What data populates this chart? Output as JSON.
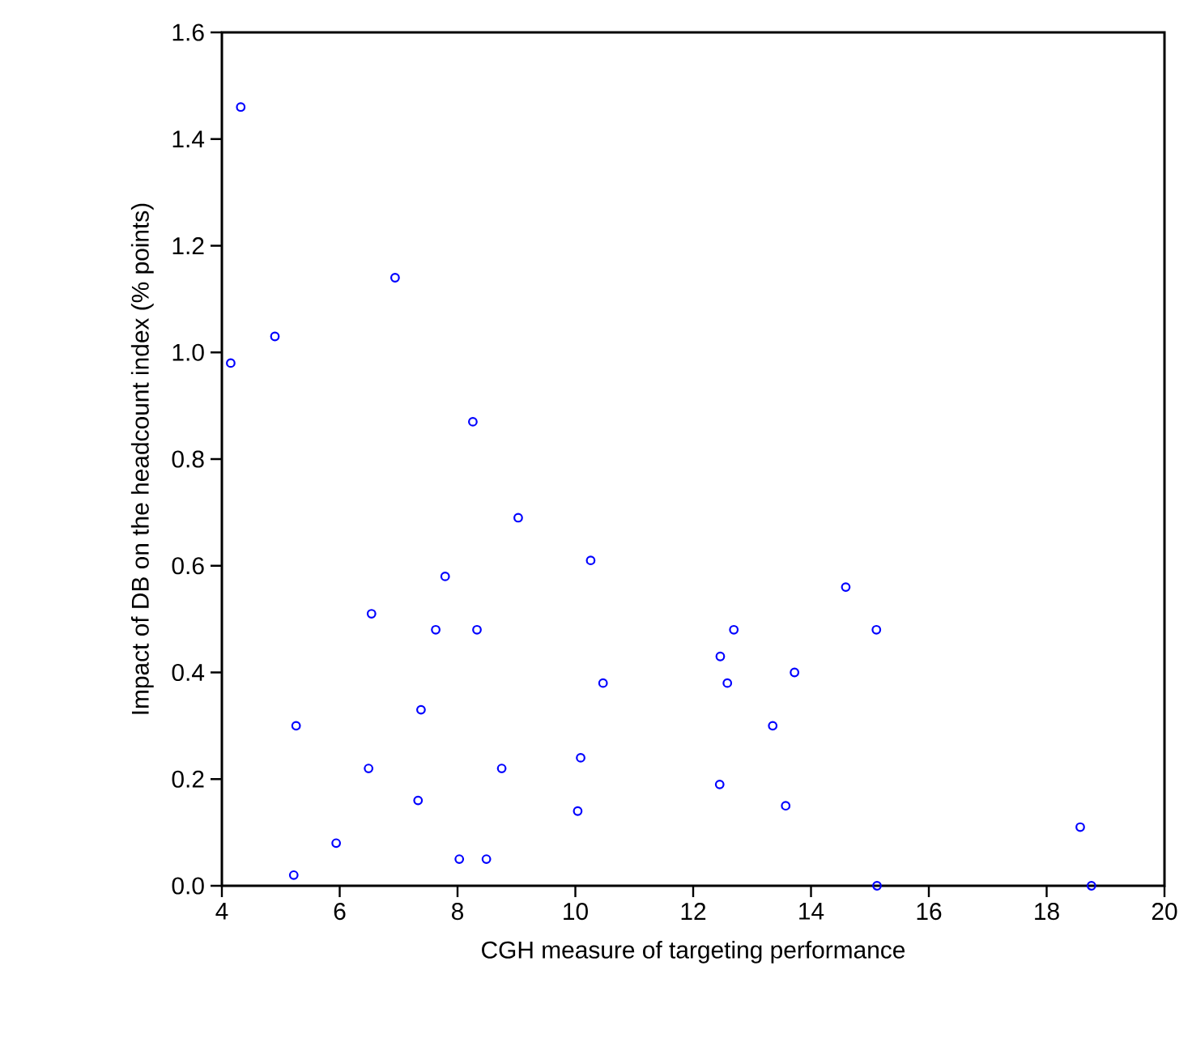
{
  "chart_data": {
    "type": "scatter",
    "xlabel": "CGH measure of targeting performance",
    "ylabel": "Impact of DB on the headcount index (% points)",
    "xlim": [
      4,
      20
    ],
    "ylim": [
      0,
      1.6
    ],
    "xticks": [
      4,
      6,
      8,
      10,
      12,
      14,
      16,
      18,
      20
    ],
    "yticks": [
      {
        "value": 0,
        "label": "0.0"
      },
      0.2,
      0.4,
      0.6,
      0.8,
      {
        "value": 1,
        "label": "1.0"
      },
      1.2,
      1.4,
      1.6
    ],
    "marker": "circle",
    "series": [
      {
        "color": "#0000ff",
        "x": [
          4.32,
          6.94,
          4.9,
          4.15,
          8.26,
          9.03,
          10.26,
          7.79,
          6.54,
          7.63,
          8.33,
          10.47,
          7.38,
          5.26,
          6.49,
          8.75,
          10.09,
          7.33,
          10.04,
          5.94,
          8.03,
          8.49,
          5.22,
          14.59,
          12.69,
          15.11,
          12.46,
          12.58,
          13.72,
          13.35,
          12.45,
          13.57,
          18.57,
          15.12,
          18.76
        ],
        "values": [
          1.46,
          1.14,
          1.03,
          0.98,
          0.87,
          0.69,
          0.61,
          0.58,
          0.51,
          0.48,
          0.48,
          0.38,
          0.33,
          0.3,
          0.22,
          0.22,
          0.24,
          0.16,
          0.14,
          0.08,
          0.05,
          0.05,
          0.02,
          0.56,
          0.48,
          0.48,
          0.43,
          0.38,
          0.4,
          0.3,
          0.19,
          0.15,
          0.11,
          0.0,
          0.0
        ]
      }
    ]
  }
}
